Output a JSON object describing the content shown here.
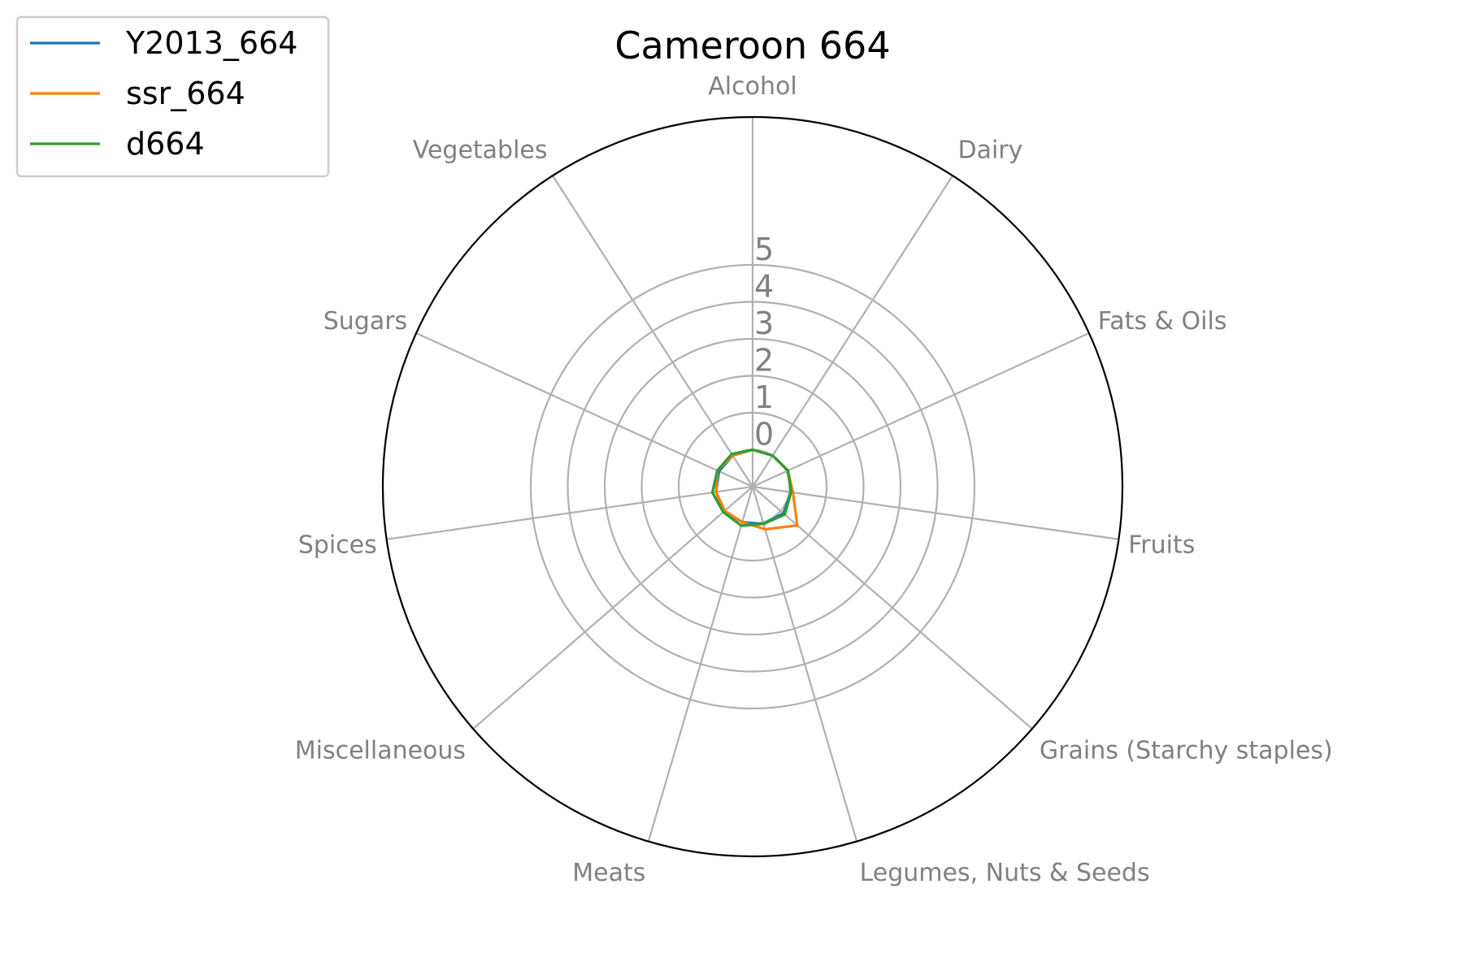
{
  "chart_data": {
    "type": "radar",
    "title": "Cameroon 664",
    "categories": [
      "Alcohol",
      "Dairy",
      "Fats & Oils",
      "Fruits",
      "Grains (Starchy staples)",
      "Legumes, Nuts & Seeds",
      "Meats",
      "Miscellaneous",
      "Spices",
      "Sugars",
      "Vegetables"
    ],
    "radial_ticks": [
      "0",
      "1",
      "2",
      "3",
      "4",
      "5"
    ],
    "rlim": [
      -1,
      9
    ],
    "grid": true,
    "legend_position": "top-left",
    "series": [
      {
        "name": "Y2013_664",
        "color": "#1f77b4",
        "values": [
          0,
          0,
          0.05,
          0.05,
          0.1,
          0.05,
          0,
          0,
          0,
          0,
          0
        ]
      },
      {
        "name": "ssr_664",
        "color": "#ff7f0e",
        "values": [
          0,
          0,
          0.05,
          0.1,
          0.6,
          0.2,
          0,
          0,
          0,
          0.05,
          0
        ]
      },
      {
        "name": "d664",
        "color": "#2ca02c",
        "values": [
          0,
          0,
          0.05,
          0.05,
          0.15,
          0.05,
          0.1,
          0.05,
          0.1,
          0.05,
          0.05
        ]
      }
    ]
  }
}
